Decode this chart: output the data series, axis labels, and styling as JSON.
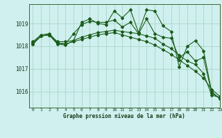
{
  "title": "Graphe pression niveau de la mer (hPa)",
  "bg_color": "#cff0ee",
  "grid_color": "#b0d8cc",
  "line_color": "#1a5c1a",
  "xlim": [
    -0.5,
    23
  ],
  "ylim": [
    1015.3,
    1019.85
  ],
  "yticks": [
    1016,
    1017,
    1018,
    1019
  ],
  "xticks": [
    0,
    1,
    2,
    3,
    4,
    5,
    6,
    7,
    8,
    9,
    10,
    11,
    12,
    13,
    14,
    15,
    16,
    17,
    18,
    19,
    20,
    21,
    22,
    23
  ],
  "series": [
    [
      1018.2,
      1018.5,
      1018.55,
      1018.2,
      1018.2,
      1018.25,
      1018.4,
      1018.5,
      1018.6,
      1018.65,
      1018.7,
      1018.65,
      1018.6,
      1018.55,
      1018.45,
      1018.35,
      1018.1,
      1017.9,
      1017.6,
      1017.35,
      1017.2,
      1016.8,
      1015.85,
      1015.75
    ],
    [
      1018.1,
      1018.45,
      1018.5,
      1018.15,
      1018.1,
      1018.55,
      1018.95,
      1019.1,
      1019.05,
      1019.05,
      1019.15,
      1018.85,
      1019.05,
      1018.55,
      1019.2,
      1018.55,
      1018.4,
      1018.35,
      1017.5,
      1017.75,
      1017.35,
      1017.5,
      1015.95,
      1015.7
    ],
    [
      1018.1,
      1018.45,
      1018.5,
      1018.1,
      1018.05,
      1018.25,
      1019.05,
      1019.2,
      1019.0,
      1018.95,
      1019.55,
      1019.25,
      1019.6,
      1018.6,
      1019.6,
      1019.55,
      1018.9,
      1018.65,
      1017.1,
      1018.0,
      1018.25,
      1017.8,
      1016.0,
      1015.7
    ],
    [
      1018.15,
      1018.45,
      1018.5,
      1018.15,
      1018.1,
      1018.2,
      1018.3,
      1018.4,
      1018.5,
      1018.55,
      1018.6,
      1018.5,
      1018.4,
      1018.3,
      1018.2,
      1018.05,
      1017.85,
      1017.65,
      1017.4,
      1017.15,
      1016.9,
      1016.6,
      1016.1,
      1015.8
    ]
  ]
}
